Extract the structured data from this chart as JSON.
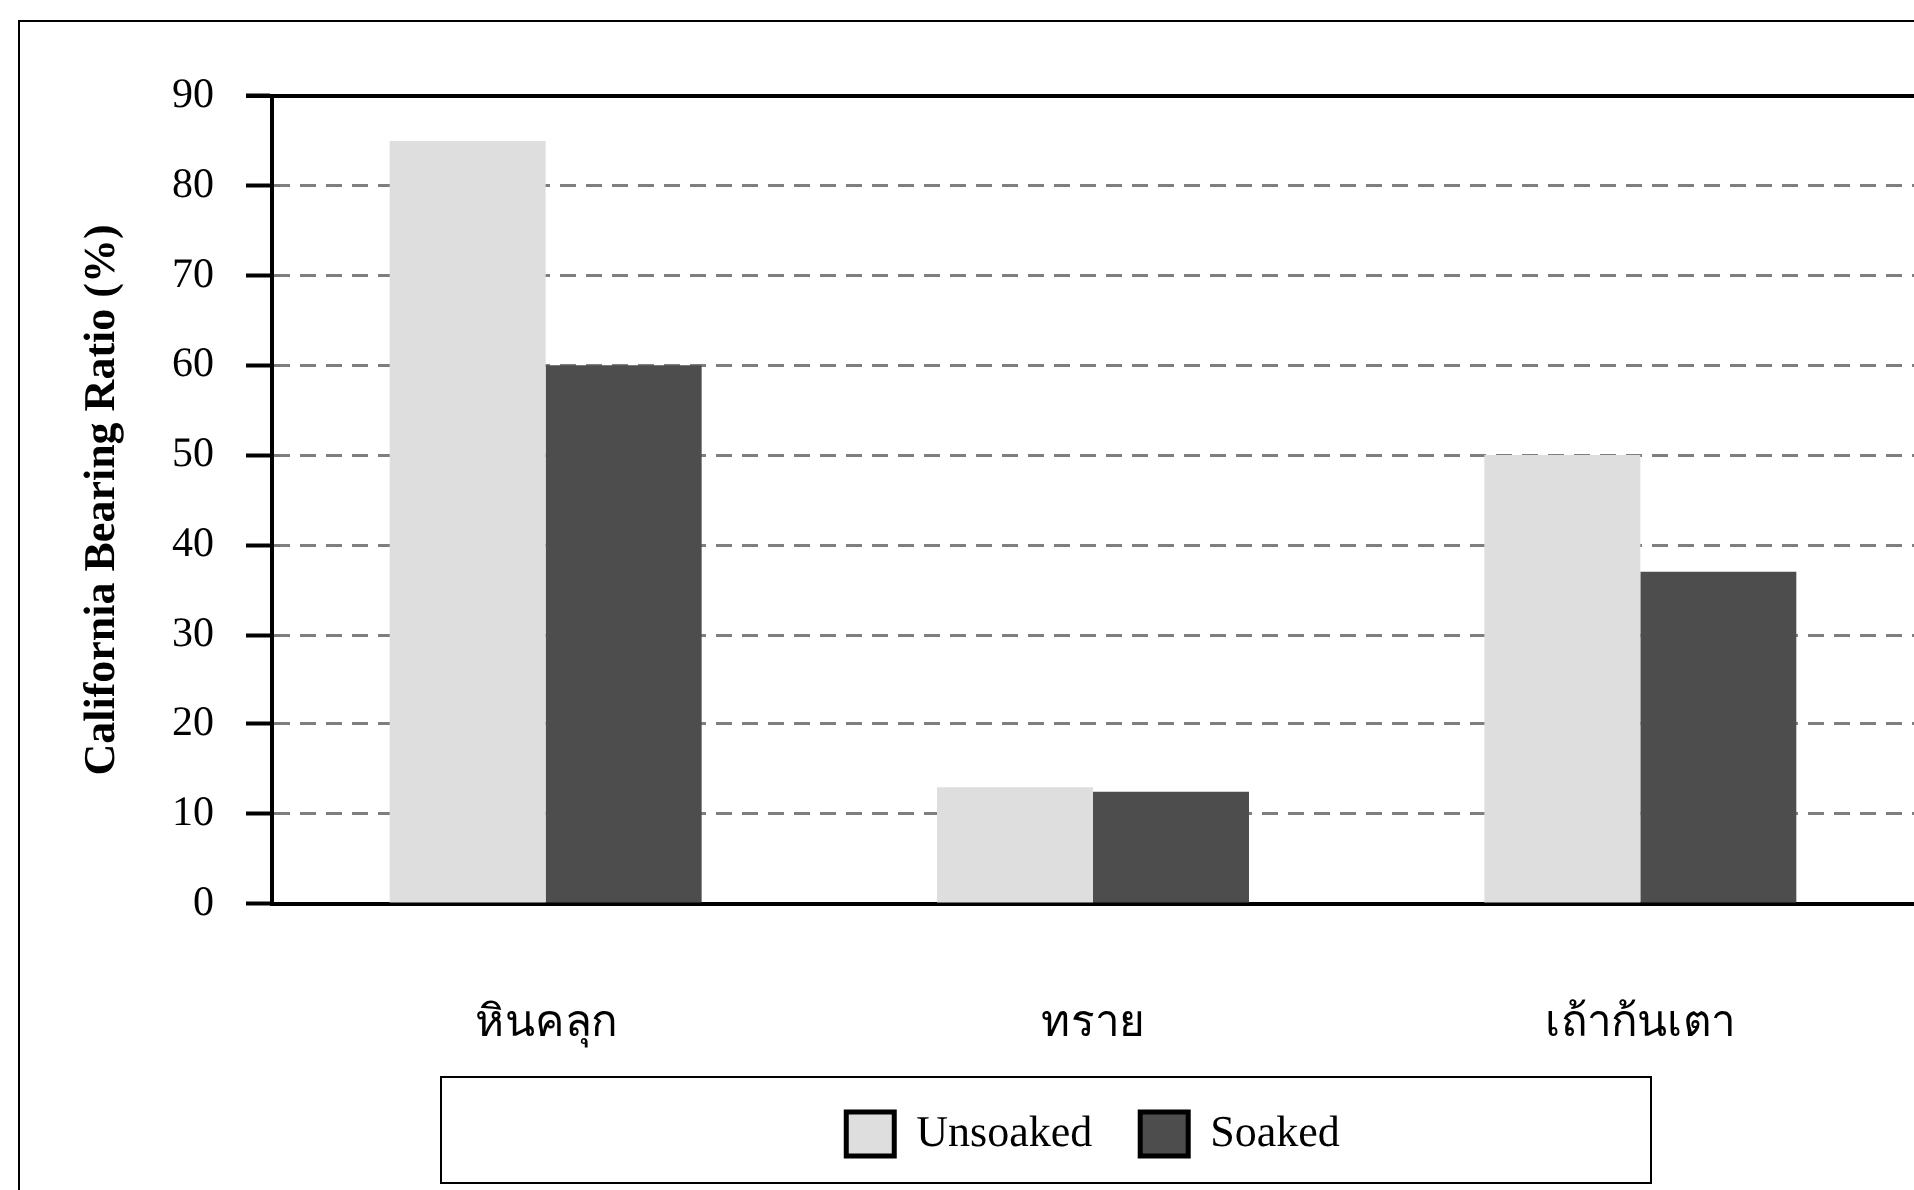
{
  "chart_data": {
    "type": "bar",
    "ylabel": "California Bearing Ratio (%)",
    "categories": [
      "หินคลุก",
      "ทราย",
      "เถ้าก้นเตา"
    ],
    "series": [
      {
        "name": "Unsoaked",
        "color": "#dedede",
        "values": [
          85,
          13,
          50
        ]
      },
      {
        "name": "Soaked",
        "color": "#4d4d4d",
        "values": [
          60,
          12.5,
          37
        ]
      }
    ],
    "ylim": [
      0,
      90
    ],
    "yticks": [
      0,
      10,
      20,
      30,
      40,
      50,
      60,
      70,
      80,
      90
    ],
    "grid": "y",
    "legend": "bottom"
  }
}
